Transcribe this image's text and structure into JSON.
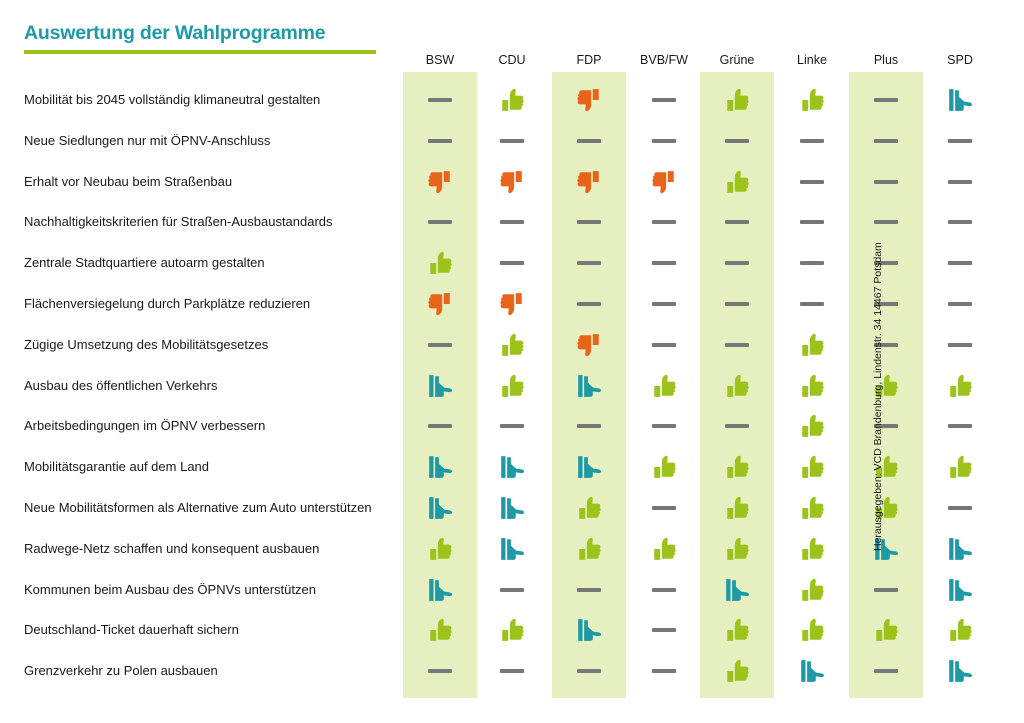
{
  "title": "Auswertung der Wahlprogramme",
  "credit": "Herausgegeben: VCD Brandenburg, Lindenstr. 34 14467 Potsdam",
  "colors": {
    "teal": "#1d9aa6",
    "lime": "#9bc31c",
    "orange": "#e8641a",
    "neutral": "#777777",
    "column_highlight": "#e6efbf"
  },
  "legend_icons": {
    "up": "thumbs-up-icon",
    "side": "thumbs-sideways-icon",
    "down": "thumbs-down-icon",
    "neutral": "dash-icon"
  },
  "chart_data": {
    "type": "table",
    "title": "Auswertung der Wahlprogramme",
    "columns": [
      "BSW",
      "CDU",
      "FDP",
      "BVB/FW",
      "Grüne",
      "Linke",
      "Plus",
      "SPD"
    ],
    "highlighted_columns": [
      "BSW",
      "FDP",
      "Grüne",
      "Plus"
    ],
    "rows": [
      {
        "label": "Mobilität bis 2045 vollständig klimaneutral gestalten",
        "ratings": [
          [
            "neutral",
            ""
          ],
          [
            "up",
            "lime"
          ],
          [
            "down",
            "orange"
          ],
          [
            "neutral",
            ""
          ],
          [
            "up",
            "lime"
          ],
          [
            "up",
            "lime"
          ],
          [
            "neutral",
            ""
          ],
          [
            "side",
            "teal"
          ]
        ]
      },
      {
        "label": "Neue Siedlungen nur mit ÖPNV-Anschluss",
        "ratings": [
          [
            "neutral",
            ""
          ],
          [
            "neutral",
            ""
          ],
          [
            "neutral",
            ""
          ],
          [
            "neutral",
            ""
          ],
          [
            "neutral",
            ""
          ],
          [
            "neutral",
            ""
          ],
          [
            "neutral",
            ""
          ],
          [
            "neutral",
            ""
          ]
        ]
      },
      {
        "label": "Erhalt vor Neubau beim Straßenbau",
        "ratings": [
          [
            "down",
            "orange"
          ],
          [
            "down",
            "orange"
          ],
          [
            "down",
            "orange"
          ],
          [
            "down",
            "orange"
          ],
          [
            "up",
            "lime"
          ],
          [
            "neutral",
            ""
          ],
          [
            "neutral",
            ""
          ],
          [
            "neutral",
            ""
          ]
        ]
      },
      {
        "label": "Nachhaltigkeitskriterien für Straßen-Ausbaustandards",
        "ratings": [
          [
            "neutral",
            ""
          ],
          [
            "neutral",
            ""
          ],
          [
            "neutral",
            ""
          ],
          [
            "neutral",
            ""
          ],
          [
            "neutral",
            ""
          ],
          [
            "neutral",
            ""
          ],
          [
            "neutral",
            ""
          ],
          [
            "neutral",
            ""
          ]
        ]
      },
      {
        "label": "Zentrale Stadtquartiere autoarm gestalten",
        "ratings": [
          [
            "up",
            "lime"
          ],
          [
            "neutral",
            ""
          ],
          [
            "neutral",
            ""
          ],
          [
            "neutral",
            ""
          ],
          [
            "neutral",
            ""
          ],
          [
            "neutral",
            ""
          ],
          [
            "neutral",
            ""
          ],
          [
            "neutral",
            ""
          ]
        ]
      },
      {
        "label": "Flächenversiegelung durch Parkplätze reduzieren",
        "ratings": [
          [
            "down",
            "orange"
          ],
          [
            "down",
            "orange"
          ],
          [
            "neutral",
            ""
          ],
          [
            "neutral",
            ""
          ],
          [
            "neutral",
            ""
          ],
          [
            "neutral",
            ""
          ],
          [
            "neutral",
            ""
          ],
          [
            "neutral",
            ""
          ]
        ]
      },
      {
        "label": "Zügige Umsetzung des Mobilitätsgesetzes",
        "ratings": [
          [
            "neutral",
            ""
          ],
          [
            "up",
            "lime"
          ],
          [
            "down",
            "orange"
          ],
          [
            "neutral",
            ""
          ],
          [
            "neutral",
            ""
          ],
          [
            "up",
            "lime"
          ],
          [
            "neutral",
            ""
          ],
          [
            "neutral",
            ""
          ]
        ]
      },
      {
        "label": "Ausbau des öffentlichen Verkehrs",
        "ratings": [
          [
            "side",
            "teal"
          ],
          [
            "up",
            "lime"
          ],
          [
            "side",
            "teal"
          ],
          [
            "up",
            "lime"
          ],
          [
            "up",
            "lime"
          ],
          [
            "up",
            "lime"
          ],
          [
            "up",
            "lime"
          ],
          [
            "up",
            "lime"
          ]
        ]
      },
      {
        "label": "Arbeitsbedingungen im ÖPNV verbessern",
        "ratings": [
          [
            "neutral",
            ""
          ],
          [
            "neutral",
            ""
          ],
          [
            "neutral",
            ""
          ],
          [
            "neutral",
            ""
          ],
          [
            "neutral",
            ""
          ],
          [
            "up",
            "lime"
          ],
          [
            "neutral",
            ""
          ],
          [
            "neutral",
            ""
          ]
        ]
      },
      {
        "label": "Mobilitätsgarantie auf dem Land",
        "ratings": [
          [
            "side",
            "teal"
          ],
          [
            "side",
            "teal"
          ],
          [
            "side",
            "teal"
          ],
          [
            "up",
            "lime"
          ],
          [
            "up",
            "lime"
          ],
          [
            "up",
            "lime"
          ],
          [
            "up",
            "lime"
          ],
          [
            "up",
            "lime"
          ]
        ]
      },
      {
        "label": "Neue Mobilitätsformen als Alternative zum Auto unterstützen",
        "ratings": [
          [
            "side",
            "teal"
          ],
          [
            "side",
            "teal"
          ],
          [
            "up",
            "lime"
          ],
          [
            "neutral",
            ""
          ],
          [
            "up",
            "lime"
          ],
          [
            "up",
            "lime"
          ],
          [
            "up",
            "lime"
          ],
          [
            "neutral",
            ""
          ]
        ]
      },
      {
        "label": "Radwege-Netz schaffen und konsequent ausbauen",
        "ratings": [
          [
            "up",
            "lime"
          ],
          [
            "side",
            "teal"
          ],
          [
            "up",
            "lime"
          ],
          [
            "up",
            "lime"
          ],
          [
            "up",
            "lime"
          ],
          [
            "up",
            "lime"
          ],
          [
            "side",
            "teal"
          ],
          [
            "side",
            "teal"
          ]
        ]
      },
      {
        "label": "Kommunen beim Ausbau des ÖPNVs unterstützen",
        "ratings": [
          [
            "side",
            "teal"
          ],
          [
            "neutral",
            ""
          ],
          [
            "neutral",
            ""
          ],
          [
            "neutral",
            ""
          ],
          [
            "side",
            "teal"
          ],
          [
            "up",
            "lime"
          ],
          [
            "neutral",
            ""
          ],
          [
            "side",
            "teal"
          ]
        ]
      },
      {
        "label": "Deutschland-Ticket dauerhaft sichern",
        "ratings": [
          [
            "up",
            "lime"
          ],
          [
            "up",
            "lime"
          ],
          [
            "side",
            "teal"
          ],
          [
            "neutral",
            ""
          ],
          [
            "up",
            "lime"
          ],
          [
            "up",
            "lime"
          ],
          [
            "up",
            "lime"
          ],
          [
            "up",
            "lime"
          ]
        ]
      },
      {
        "label": "Grenzverkehr zu Polen ausbauen",
        "ratings": [
          [
            "neutral",
            ""
          ],
          [
            "neutral",
            ""
          ],
          [
            "neutral",
            ""
          ],
          [
            "neutral",
            ""
          ],
          [
            "up",
            "lime"
          ],
          [
            "side",
            "teal"
          ],
          [
            "neutral",
            ""
          ],
          [
            "side",
            "teal"
          ]
        ]
      }
    ]
  }
}
